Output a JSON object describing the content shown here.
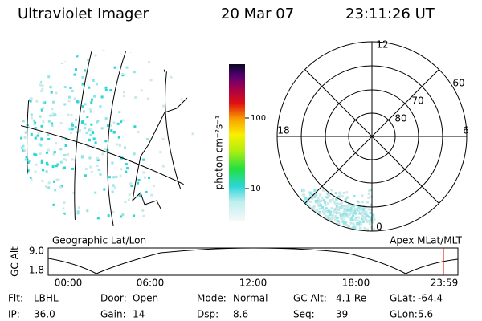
{
  "header": {
    "title": "Ultraviolet Imager",
    "date": "20 Mar 07",
    "time": "23:11:26 UT"
  },
  "map": {
    "label": "Geographic Lat/Lon"
  },
  "colorbar": {
    "label": "photon cm⁻²s⁻¹",
    "ticks": [
      "100",
      "10"
    ]
  },
  "polar": {
    "label": "Apex MLat/MLT",
    "hours": [
      "12",
      "18",
      "6",
      "0"
    ],
    "latitudes": [
      "60",
      "70",
      "80"
    ]
  },
  "altitude": {
    "label": "GC Alt",
    "yticks": [
      "9.0",
      "1.8"
    ],
    "xticks": [
      "00:00",
      "06:00",
      "12:00",
      "18:00",
      "23:59"
    ]
  },
  "status": {
    "rows": [
      [
        {
          "label": "Flt:",
          "value": "LBHL"
        },
        {
          "label": "Door:",
          "value": "Open"
        },
        {
          "label": "Mode:",
          "value": "Normal"
        },
        {
          "label": "GC Alt:",
          "value": "4.1 Re"
        },
        {
          "label": "GLat:",
          "value": "-64.4"
        }
      ],
      [
        {
          "label": "IP:",
          "value": "36.0"
        },
        {
          "label": "Gain:",
          "value": "14"
        },
        {
          "label": "Dsp:",
          "value": "8.6"
        },
        {
          "label": "Seq:",
          "value": "39"
        },
        {
          "label": "GLon:",
          "value": "5.6"
        }
      ]
    ]
  }
}
